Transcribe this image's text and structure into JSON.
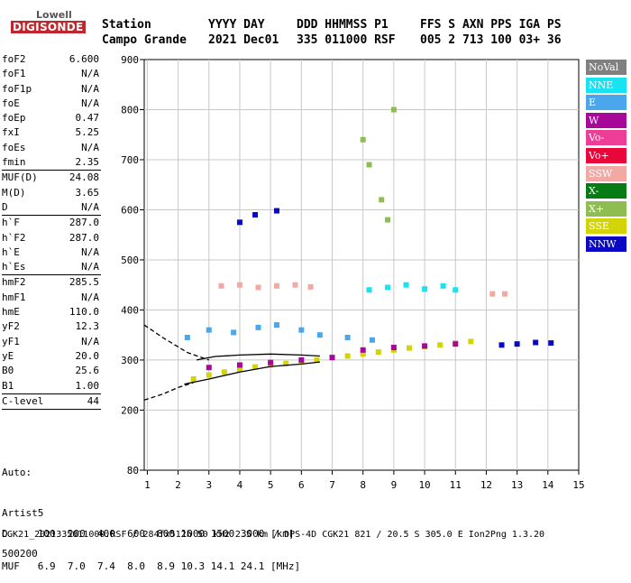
{
  "logo": {
    "top": "Lowell",
    "bottom": "DIGISONDE"
  },
  "header": {
    "labels": [
      "Station",
      "YYYY DAY",
      "DDD HHMMSS P1",
      "FFS S AXN PPS IGA PS"
    ],
    "values": [
      "Campo Grande",
      "2021 Dec01",
      "335 011000 RSF",
      "005 2 713 100 03+ 36"
    ]
  },
  "params": [
    {
      "label": "foF2",
      "value": "6.600"
    },
    {
      "label": "foF1",
      "value": "N/A"
    },
    {
      "label": "foF1p",
      "value": "N/A"
    },
    {
      "label": "foE",
      "value": "N/A"
    },
    {
      "label": "foEp",
      "value": "0.47"
    },
    {
      "label": "fxI",
      "value": "5.25"
    },
    {
      "label": "foEs",
      "value": "N/A"
    },
    {
      "label": "fmin",
      "value": "2.35",
      "sep": true
    },
    {
      "label": "MUF(D)",
      "value": "24.08"
    },
    {
      "label": "M(D)",
      "value": "3.65"
    },
    {
      "label": "D",
      "value": "N/A",
      "sep": true
    },
    {
      "label": "h`F",
      "value": "287.0"
    },
    {
      "label": "h`F2",
      "value": "287.0"
    },
    {
      "label": "h`E",
      "value": "N/A"
    },
    {
      "label": "h`Es",
      "value": "N/A",
      "sep": true
    },
    {
      "label": "hmF2",
      "value": "285.5"
    },
    {
      "label": "hmF1",
      "value": "N/A"
    },
    {
      "label": "hmE",
      "value": "110.0"
    },
    {
      "label": "yF2",
      "value": "12.3"
    },
    {
      "label": "yF1",
      "value": "N/A"
    },
    {
      "label": "yE",
      "value": "20.0"
    },
    {
      "label": "B0",
      "value": "25.6"
    },
    {
      "label": "B1",
      "value": "1.00",
      "sep": true
    },
    {
      "label": "C-level",
      "value": "44",
      "sep": true
    }
  ],
  "auto": [
    "Auto:",
    "Artist5",
    "500200"
  ],
  "legend": [
    {
      "label": "NoVal",
      "color": "#808080"
    },
    {
      "label": "NNE",
      "color": "#17e3f2"
    },
    {
      "label": "E",
      "color": "#4aa7ee"
    },
    {
      "label": "W",
      "color": "#a8089a"
    },
    {
      "label": "Vo-",
      "color": "#ee3d96"
    },
    {
      "label": "Vo+",
      "color": "#e8063a"
    },
    {
      "label": "SSW",
      "color": "#f3a9a3"
    },
    {
      "label": "X-",
      "color": "#077c15"
    },
    {
      "label": "X+",
      "color": "#8fbd52"
    },
    {
      "label": "SSE",
      "color": "#d3d406"
    },
    {
      "label": "NNW",
      "color": "#0a08c4"
    }
  ],
  "bottom": {
    "d_row": "D     100  200  400  600  800 1000 1500 3000 [km]",
    "muf_row": "MUF   6.9  7.0  7.4  8.0  8.9 10.3 14.1 24.1 [MHz]",
    "footer": "CGK21_2021335011000.RSF / 284fx512h 50 kHz 2.5 km / DPS-4D CGK21 821 / 20.5 S 305.0 E Ion2Png 1.3.20"
  },
  "chart_data": {
    "type": "scatter",
    "title": "",
    "xlabel": "",
    "ylabel": "",
    "xlim": [
      0.9,
      15.0
    ],
    "ylim": [
      80,
      900
    ],
    "xticks": [
      1,
      2,
      3,
      4,
      5,
      6,
      7,
      8,
      9,
      10,
      11,
      12,
      13,
      14,
      15
    ],
    "yticks": [
      80,
      200,
      300,
      400,
      500,
      600,
      700,
      800,
      900
    ],
    "grid": true,
    "legend_position": "right",
    "series": [
      {
        "name": "E",
        "x": [
          2.3,
          3.0,
          3.8,
          4.6,
          5.2,
          6.0,
          6.6,
          7.5,
          8.3
        ],
        "y": [
          345,
          360,
          355,
          365,
          370,
          360,
          350,
          345,
          340
        ]
      },
      {
        "name": "SSW",
        "x": [
          3.4,
          4.0,
          4.6,
          5.2,
          5.8,
          6.3,
          12.2,
          12.6
        ],
        "y": [
          448,
          450,
          445,
          448,
          450,
          446,
          432,
          432
        ]
      },
      {
        "name": "NNE",
        "x": [
          8.2,
          8.8,
          9.4,
          10.0,
          10.6,
          11.0
        ],
        "y": [
          440,
          445,
          450,
          442,
          448,
          440
        ]
      },
      {
        "name": "NNW",
        "x": [
          4.0,
          4.5,
          5.2,
          12.5,
          13.0,
          13.6,
          14.1
        ],
        "y": [
          575,
          590,
          598,
          330,
          332,
          335,
          334
        ]
      },
      {
        "name": "SSE",
        "x": [
          2.5,
          3.0,
          3.5,
          4.0,
          4.5,
          5.0,
          5.5,
          6.0,
          6.5,
          7.0,
          7.5,
          8.0,
          8.5,
          9.0,
          9.5,
          10.0,
          10.5,
          11.0,
          11.5
        ],
        "y": [
          262,
          270,
          276,
          281,
          286,
          290,
          293,
          296,
          300,
          305,
          308,
          312,
          316,
          320,
          324,
          327,
          330,
          334,
          337
        ]
      },
      {
        "name": "W",
        "x": [
          3.0,
          4.0,
          5.0,
          6.0,
          7.0,
          8.0,
          9.0,
          10.0,
          11.0
        ],
        "y": [
          285,
          290,
          295,
          300,
          305,
          320,
          325,
          328,
          332
        ]
      },
      {
        "name": "X+",
        "x": [
          8.0,
          8.2,
          8.6,
          8.8,
          9.0
        ],
        "y": [
          740,
          690,
          620,
          580,
          800
        ]
      }
    ],
    "trace_lines": [
      {
        "style": "dashed",
        "x": [
          0.9,
          1.5,
          2.3,
          3.0
        ],
        "y": [
          370,
          345,
          315,
          300
        ]
      },
      {
        "style": "dashed",
        "x": [
          0.9,
          1.5,
          2.0,
          2.5
        ],
        "y": [
          220,
          232,
          245,
          255
        ]
      },
      {
        "style": "solid",
        "x": [
          2.2,
          3.0,
          4.0,
          5.0,
          6.0,
          6.6
        ],
        "y": [
          252,
          262,
          276,
          287,
          292,
          296
        ]
      },
      {
        "style": "solid",
        "x": [
          2.6,
          3.2,
          4.0,
          5.0,
          6.0,
          6.6
        ],
        "y": [
          300,
          307,
          310,
          312,
          310,
          308
        ]
      }
    ]
  }
}
